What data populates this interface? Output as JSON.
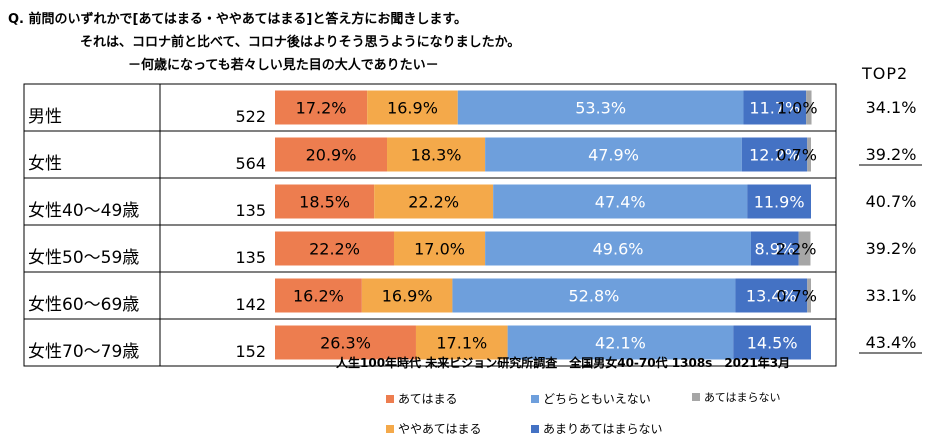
{
  "question": {
    "line1": "Q. 前問のいずれかで[あてはまる・ややあてはまる]と答え方にお聞きします。",
    "line2": "それは、コロナ前と比べて、コロナ後はよりそう思うようになりましたか。",
    "line3": "－何歳になっても若々しい見た目の大人でありたい－"
  },
  "top2_header": "TOP2",
  "source": "人生100年時代 未来ビジョン研究所調査　全国男女40-70代 1308s　2021年3月",
  "colors": {
    "atehamaru": "#ED7D4F",
    "yaya": "#F4A94A",
    "dochira": "#6E9FDC",
    "amari": "#4472C4",
    "atehamaranai": "#A6A6A6"
  },
  "chart_data": {
    "type": "bar",
    "orientation": "horizontal",
    "stacked": true,
    "categories": [
      "男性",
      "女性",
      "女性40～49歳",
      "女性50～59歳",
      "女性60～69歳",
      "女性70～79歳"
    ],
    "n": [
      522,
      564,
      135,
      135,
      142,
      152
    ],
    "series": [
      {
        "name": "あてはまる",
        "values": [
          17.2,
          20.9,
          18.5,
          22.2,
          16.2,
          26.3
        ]
      },
      {
        "name": "ややあてはまる",
        "values": [
          16.9,
          18.3,
          22.2,
          17.0,
          16.9,
          17.1
        ]
      },
      {
        "name": "どちらともいえない",
        "values": [
          53.3,
          47.9,
          47.4,
          49.6,
          52.8,
          42.1
        ]
      },
      {
        "name": "あまりあてはまらない",
        "values": [
          11.7,
          12.2,
          11.9,
          8.9,
          13.4,
          14.5
        ]
      },
      {
        "name": "あてはまらない",
        "values": [
          1.0,
          0.7,
          null,
          2.2,
          0.7,
          null
        ]
      }
    ],
    "value_labels": [
      [
        "17.2%",
        "16.9%",
        "53.3%",
        "11.7%",
        "1.0%"
      ],
      [
        "20.9%",
        "18.3%",
        "47.9%",
        "12.2%",
        "0.7%"
      ],
      [
        "18.5%",
        "22.2%",
        "47.4%",
        "11.9%",
        ""
      ],
      [
        "22.2%",
        "17.0%",
        "49.6%",
        "8.9%",
        "2.2%"
      ],
      [
        "16.2%",
        "16.9%",
        "52.8%",
        "13.4%",
        "0.7%"
      ],
      [
        "26.3%",
        "17.1%",
        "42.1%",
        "14.5%",
        ""
      ]
    ],
    "top2": [
      "34.1%",
      "39.2%",
      "40.7%",
      "39.2%",
      "33.1%",
      "43.4%"
    ],
    "top2_underlined": [
      false,
      true,
      false,
      false,
      false,
      true
    ],
    "legend": [
      "あてはまる",
      "どちらともいえない",
      "あてはまらない",
      "ややあてはまる",
      "あまりあてはまらない"
    ]
  }
}
